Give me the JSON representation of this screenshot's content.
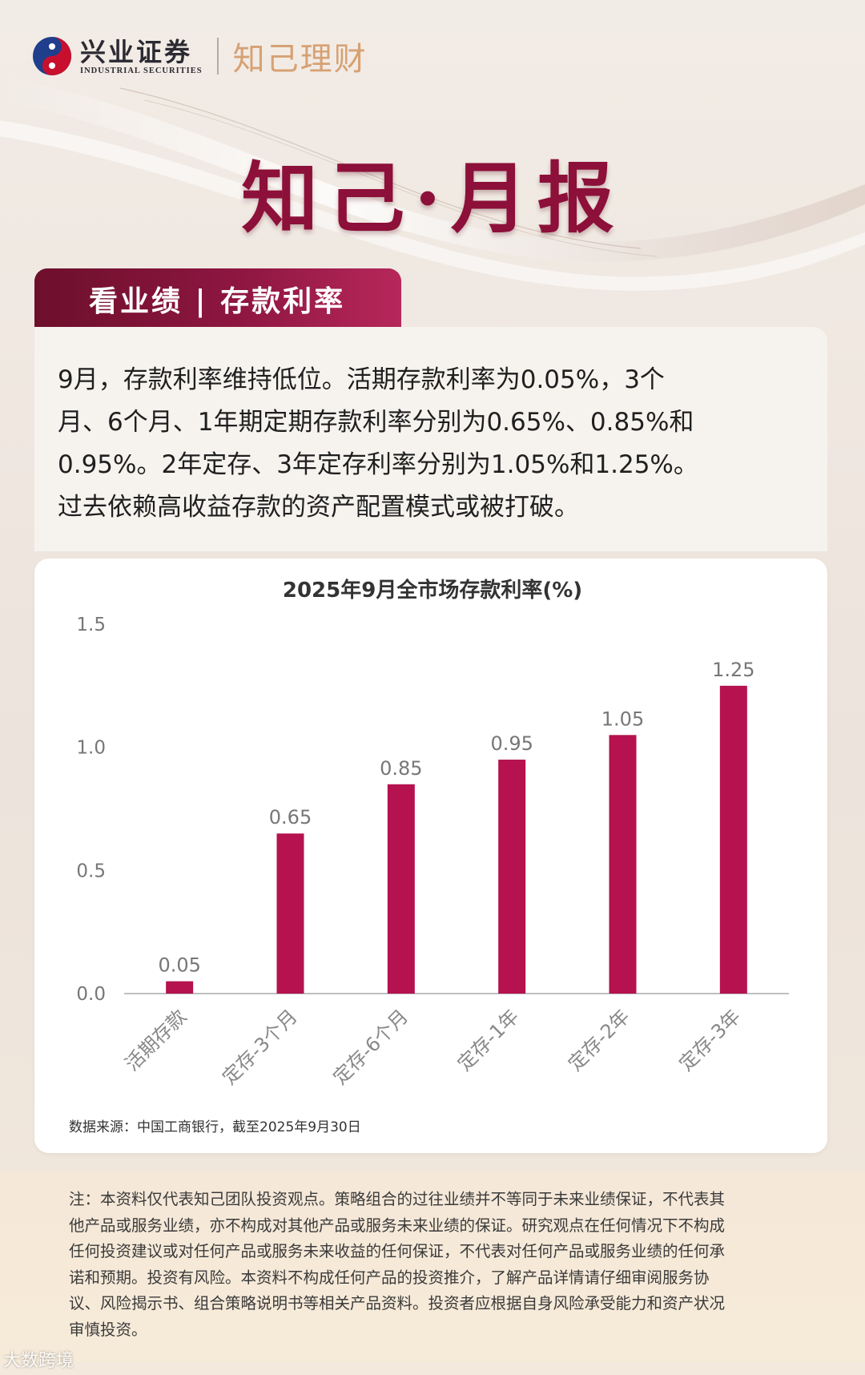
{
  "brand": {
    "name_cn": "兴业证券",
    "name_en": "INDUSTRIAL SECURITIES",
    "sub_brand": "知己理财"
  },
  "main_title": "知己·月报",
  "section_tab": "看业绩 | 存款利率",
  "intro": [
    "9月，存款利率维持低位。活期存款利率为0.05%，3个",
    "月、6个月、1年期定期存款利率分别为0.65%、0.85%和",
    "0.95%。2年定存、3年定存利率分别为1.05%和1.25%。",
    "过去依赖高收益存款的资产配置模式或被打破。"
  ],
  "chart_data": {
    "type": "bar",
    "title": "2025年9月全市场存款利率(%)",
    "categories": [
      "活期存款",
      "定存-3个月",
      "定存-6个月",
      "定存-1年",
      "定存-2年",
      "定存-3年"
    ],
    "values": [
      0.05,
      0.65,
      0.85,
      0.95,
      1.05,
      1.25
    ],
    "data_labels": [
      "0.05",
      "0.65",
      "0.85",
      "0.95",
      "1.05",
      "1.25"
    ],
    "yticks": [
      "0.0",
      "0.5",
      "1.0",
      "1.5"
    ],
    "ytick_values": [
      0,
      0.5,
      1.0,
      1.5
    ],
    "ylim": [
      0,
      1.5
    ],
    "grid": false,
    "bar_color": "#b5124f",
    "xlabel": "",
    "ylabel": ""
  },
  "source": "数据来源：中国工商银行，截至2025年9月30日",
  "note": [
    "注：本资料仅代表知己团队投资观点。策略组合的过往业绩并不等同于未来业绩保证，不代表其",
    "他产品或服务业绩，亦不构成对其他产品或服务未来业绩的保证。研究观点在任何情况下不构成",
    "任何投资建议或对任何产品或服务未来收益的任何保证，不代表对任何产品或服务业绩的任何承",
    "诺和预期。投资有风险。本资料不构成任何产品的投资推介，了解产品详情请仔细审阅服务协",
    "议、风险揭示书、组合策略说明书等相关产品资料。投资者应根据自身风险承受能力和资产状况",
    "审慎投资。"
  ],
  "watermark": "大数跨境",
  "colors": {
    "accent": "#8c1039",
    "bar": "#b5124f",
    "sub_brand": "#d7a173"
  }
}
